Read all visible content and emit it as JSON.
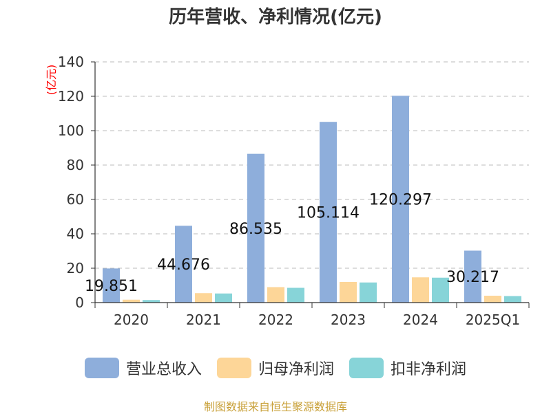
{
  "chart_data": {
    "type": "bar",
    "title": "历年营收、净利情况(亿元)",
    "ylabel": "(亿元)",
    "categories": [
      "2020",
      "2021",
      "2022",
      "2023",
      "2024",
      "2025Q1"
    ],
    "ylim": [
      0,
      140
    ],
    "yticks": [
      0,
      20,
      40,
      60,
      80,
      100,
      120,
      140
    ],
    "grid": true,
    "legend_position": "bottom",
    "series": [
      {
        "name": "营业总收入",
        "color": "#8eaedb",
        "values": [
          19.851,
          44.676,
          86.535,
          105.114,
          120.297,
          30.217
        ],
        "labels": [
          "19.851",
          "44.676",
          "86.535",
          "105.114",
          "120.297",
          "30.217"
        ]
      },
      {
        "name": "归母净利润",
        "color": "#fdd698",
        "values": [
          1.7,
          5.5,
          9.0,
          12.0,
          14.7,
          4.0
        ]
      },
      {
        "name": "扣非净利润",
        "color": "#87d4d8",
        "values": [
          1.5,
          5.3,
          8.6,
          11.7,
          14.5,
          3.8
        ]
      }
    ],
    "source": "制图数据来自恒生聚源数据库",
    "colors": {
      "axis": "#333333",
      "grid": "#bbbbbb",
      "ylabel": "#ff0000",
      "source": "#c9a13a"
    }
  }
}
